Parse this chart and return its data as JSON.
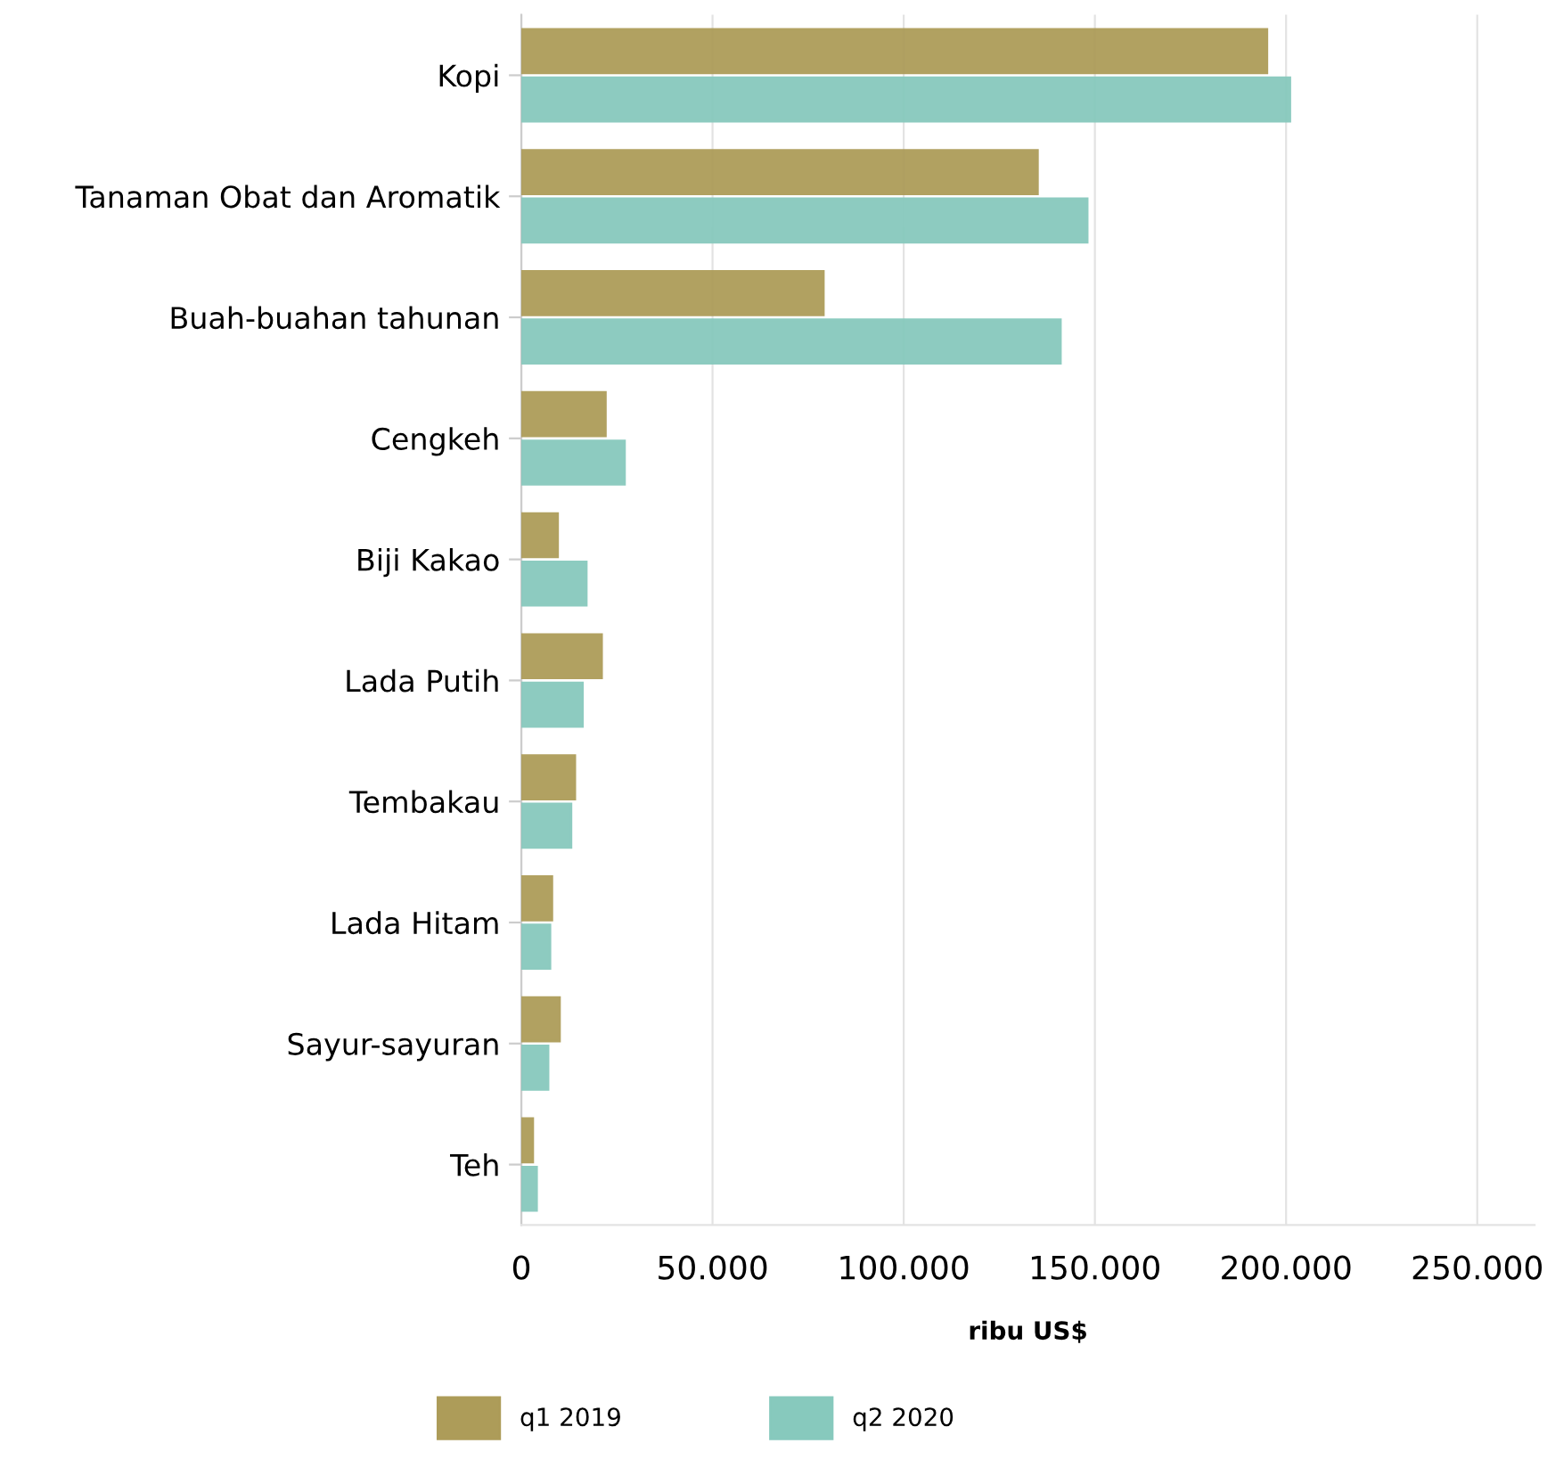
{
  "chart_data": {
    "type": "bar",
    "orientation": "horizontal",
    "xlabel": "ribu US$",
    "categories": [
      "Kopi",
      "Tanaman Obat dan Aromatik",
      "Buah-buahan tahunan",
      "Cengkeh",
      "Biji Kakao",
      "Lada Putih",
      "Tembakau",
      "Lada Hitam",
      "Sayur-sayuran",
      "Teh"
    ],
    "series": [
      {
        "name": "q1 2019",
        "color": "#ad9c59",
        "values": [
          195000,
          135000,
          79000,
          22000,
          9500,
          21000,
          14000,
          8000,
          10000,
          3000
        ]
      },
      {
        "name": "q2 2020",
        "color": "#87c9bd",
        "values": [
          201000,
          148000,
          141000,
          27000,
          17000,
          16000,
          13000,
          7500,
          7000,
          4000
        ]
      }
    ],
    "xlim": [
      0,
      265000
    ],
    "xticks": [
      0,
      {
        "value": 50000,
        "label": "50.000"
      },
      {
        "value": 100000,
        "label": "100.000"
      },
      {
        "value": 150000,
        "label": "150.000"
      },
      {
        "value": 200000,
        "label": "200.000"
      },
      {
        "value": 250000,
        "label": "250.000"
      }
    ],
    "grid": "x",
    "legend": "bottom"
  }
}
